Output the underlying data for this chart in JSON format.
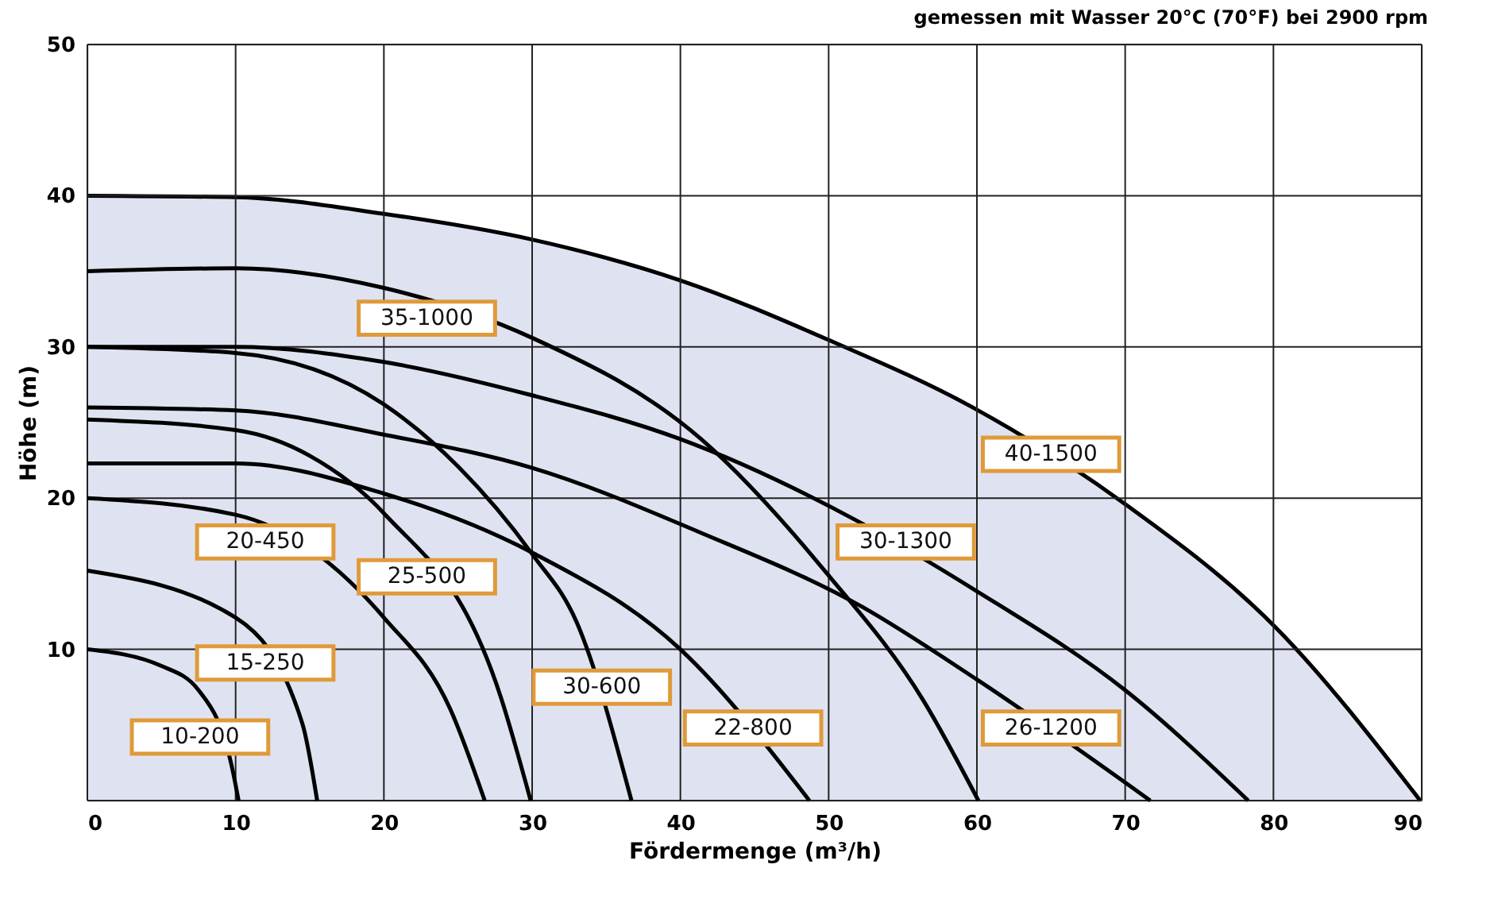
{
  "chart_data": {
    "type": "line",
    "subtitle": "gemessen mit Wasser 20°C (70°F) bei 2900 rpm",
    "xlabel": "Fördermenge (m³/h)",
    "ylabel": "Höhe (m)",
    "xlim": [
      0,
      90
    ],
    "ylim": [
      0,
      50
    ],
    "xticks": [
      0,
      10,
      20,
      30,
      40,
      50,
      60,
      70,
      80,
      90
    ],
    "yticks": [
      {
        "value": 0,
        "label": null
      },
      10,
      20,
      30,
      40,
      50
    ],
    "grid": true,
    "series": [
      {
        "name": "40-1500",
        "type": "area",
        "color": "#dfe3f1",
        "x": [
          0,
          10,
          20,
          30,
          40,
          49.9,
          59.9,
          70,
          80.2,
          89.9
        ],
        "values": [
          40,
          39.9,
          38.8,
          37.1,
          34.4,
          30.5,
          25.9,
          19.6,
          11.4,
          0
        ]
      },
      {
        "name": "10-200",
        "color": "#000000",
        "x": [
          0,
          5,
          7.5,
          9.8,
          10.2
        ],
        "values": [
          10,
          8.9,
          7.3,
          2,
          0
        ]
      },
      {
        "name": "15-250",
        "color": "#000000",
        "x": [
          0,
          10,
          14.5,
          15.5
        ],
        "values": [
          15.2,
          12.1,
          5.1,
          0
        ]
      },
      {
        "name": "20-450",
        "color": "#000000",
        "x": [
          0,
          10,
          20,
          24.5,
          26.8
        ],
        "values": [
          20,
          18.9,
          12.1,
          6,
          0
        ]
      },
      {
        "name": "22-800",
        "color": "#000000",
        "x": [
          0,
          10,
          20,
          30,
          40,
          48.7
        ],
        "values": [
          22.3,
          22.3,
          20.3,
          16.4,
          10,
          0
        ]
      },
      {
        "name": "25-500",
        "color": "#000000",
        "x": [
          0,
          10,
          15,
          20,
          27.9,
          29.9
        ],
        "values": [
          25.2,
          24.5,
          22.8,
          19,
          6.8,
          0
        ]
      },
      {
        "name": "30-600",
        "color": "#000000",
        "x": [
          0,
          10,
          20,
          25,
          30,
          33,
          36.7
        ],
        "values": [
          30,
          29.6,
          26.2,
          22.1,
          16.3,
          11.8,
          0
        ]
      },
      {
        "name": "26-1200",
        "color": "#000000",
        "x": [
          0,
          10,
          20,
          30,
          41.4,
          52.1,
          60,
          71.7
        ],
        "values": [
          26,
          25.8,
          24.2,
          22,
          17.7,
          12.9,
          8,
          0
        ]
      },
      {
        "name": "30-1300",
        "color": "#000000",
        "x": [
          0,
          10,
          20,
          30,
          40,
          52.1,
          59.9,
          70,
          78.3
        ],
        "values": [
          30,
          30,
          29,
          26.8,
          23.9,
          18.4,
          13.9,
          7.3,
          0
        ]
      },
      {
        "name": "35-1000",
        "color": "#000000",
        "x": [
          0,
          10,
          20,
          30,
          41.4,
          49.9,
          56.4,
          60.1
        ],
        "values": [
          35,
          35.2,
          33.9,
          30.6,
          23.9,
          15,
          6.6,
          0
        ]
      }
    ]
  }
}
